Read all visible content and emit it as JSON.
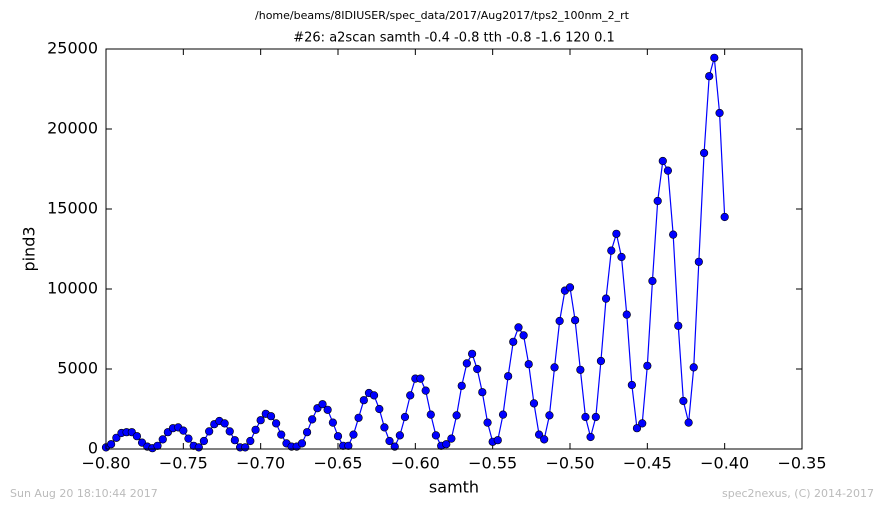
{
  "chart_data": {
    "type": "line",
    "suptitle": "/home/beams/8IDIUSER/spec_data/2017/Aug2017/tps2_100nm_2_rt",
    "title": "#26: a2scan  samth -0.4 -0.8  tth -0.8 -1.6  120 0.1",
    "xlabel": "samth",
    "ylabel": "pind3",
    "footer_left": "Sun Aug 20 18:10:44 2017",
    "footer_right": "spec2nexus, (C) 2014-2017",
    "x": [
      -0.8,
      -0.7967,
      -0.7933,
      -0.79,
      -0.7867,
      -0.7833,
      -0.78,
      -0.7767,
      -0.7733,
      -0.77,
      -0.7667,
      -0.7633,
      -0.76,
      -0.7567,
      -0.7533,
      -0.75,
      -0.7467,
      -0.7433,
      -0.74,
      -0.7367,
      -0.7333,
      -0.73,
      -0.7267,
      -0.7233,
      -0.72,
      -0.7167,
      -0.7133,
      -0.71,
      -0.7067,
      -0.7033,
      -0.7,
      -0.6967,
      -0.6933,
      -0.69,
      -0.6867,
      -0.6833,
      -0.68,
      -0.6767,
      -0.6733,
      -0.67,
      -0.6667,
      -0.6633,
      -0.66,
      -0.6567,
      -0.6533,
      -0.65,
      -0.6467,
      -0.6433,
      -0.64,
      -0.6367,
      -0.6333,
      -0.63,
      -0.6267,
      -0.6233,
      -0.62,
      -0.6167,
      -0.6133,
      -0.61,
      -0.6067,
      -0.6033,
      -0.6,
      -0.5967,
      -0.5933,
      -0.59,
      -0.5867,
      -0.5833,
      -0.58,
      -0.5767,
      -0.5733,
      -0.57,
      -0.5667,
      -0.5633,
      -0.56,
      -0.5567,
      -0.5533,
      -0.55,
      -0.5467,
      -0.5433,
      -0.54,
      -0.5367,
      -0.5333,
      -0.53,
      -0.5267,
      -0.5233,
      -0.52,
      -0.5167,
      -0.5133,
      -0.51,
      -0.5067,
      -0.5033,
      -0.5,
      -0.4967,
      -0.4933,
      -0.49,
      -0.4867,
      -0.4833,
      -0.48,
      -0.4767,
      -0.4733,
      -0.47,
      -0.4667,
      -0.4633,
      -0.46,
      -0.4567,
      -0.4533,
      -0.45,
      -0.4467,
      -0.4433,
      -0.44,
      -0.4367,
      -0.4333,
      -0.43,
      -0.4267,
      -0.4233,
      -0.42,
      -0.4167,
      -0.4133,
      -0.41,
      -0.4067,
      -0.4033,
      -0.4
    ],
    "series": [
      {
        "name": "pind3",
        "color": "#0000ff",
        "values": [
          100,
          300,
          700,
          1000,
          1050,
          1050,
          800,
          400,
          150,
          50,
          200,
          600,
          1050,
          1300,
          1350,
          1150,
          650,
          200,
          100,
          500,
          1100,
          1550,
          1750,
          1600,
          1100,
          550,
          100,
          100,
          500,
          1200,
          1800,
          2200,
          2050,
          1600,
          900,
          350,
          150,
          150,
          350,
          1050,
          1850,
          2550,
          2800,
          2450,
          1650,
          800,
          200,
          200,
          900,
          1950,
          3050,
          3500,
          3350,
          2500,
          1350,
          500,
          150,
          850,
          2000,
          3350,
          4400,
          4400,
          3650,
          2150,
          850,
          200,
          300,
          650,
          2100,
          3950,
          5350,
          5950,
          5000,
          3550,
          1650,
          450,
          550,
          2150,
          4550,
          6700,
          7600,
          7100,
          5300,
          2850,
          900,
          600,
          2100,
          5100,
          8000,
          9900,
          10100,
          8050,
          4950,
          2000,
          750,
          2000,
          5500,
          9400,
          12400,
          13450,
          12000,
          8400,
          4000,
          1300,
          1600,
          5200,
          10500,
          15500,
          18000,
          17400,
          13400,
          7700,
          3000,
          1650,
          5100,
          11700,
          18500,
          23300,
          24450,
          21000,
          14500
        ]
      }
    ],
    "xlim": [
      -0.8,
      -0.35
    ],
    "xticks": [
      {
        "value": -0.8,
        "label": "−0.80"
      },
      {
        "value": -0.75,
        "label": "−0.75"
      },
      {
        "value": -0.7,
        "label": "−0.70"
      },
      {
        "value": -0.65,
        "label": "−0.65"
      },
      {
        "value": -0.6,
        "label": "−0.60"
      },
      {
        "value": -0.55,
        "label": "−0.55"
      },
      {
        "value": -0.5,
        "label": "−0.50"
      },
      {
        "value": -0.45,
        "label": "−0.45"
      },
      {
        "value": -0.4,
        "label": "−0.40"
      },
      {
        "value": -0.35,
        "label": "−0.35"
      }
    ],
    "ylim": [
      0,
      25000
    ],
    "yticks": [
      0,
      5000,
      10000,
      15000,
      20000,
      25000
    ],
    "grid": false
  }
}
